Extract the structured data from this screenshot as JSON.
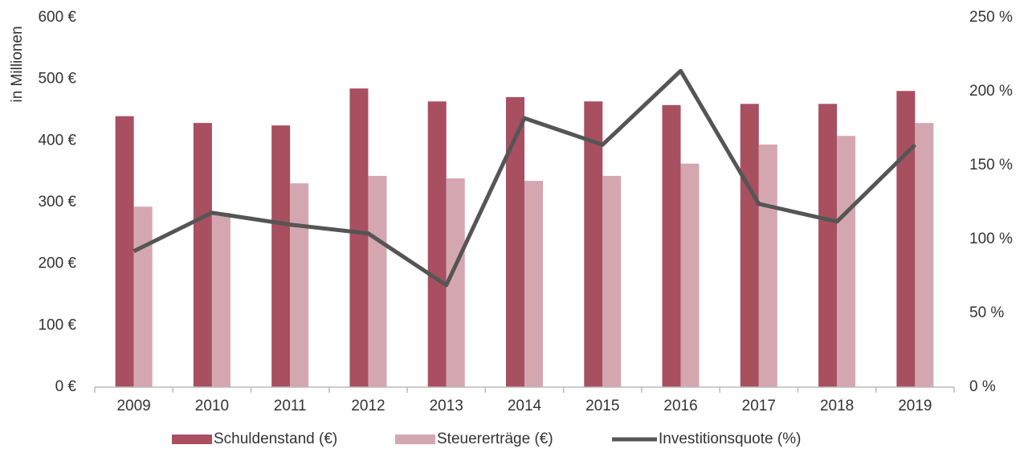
{
  "chart_data": {
    "type": "bar",
    "y_label": "in Millionen",
    "categories": [
      "2009",
      "2010",
      "2011",
      "2012",
      "2013",
      "2014",
      "2015",
      "2016",
      "2017",
      "2018",
      "2019"
    ],
    "series": [
      {
        "name": "Schuldenstand (€)",
        "color": "#a84f60",
        "type": "bar",
        "values": [
          440,
          429,
          425,
          485,
          464,
          471,
          464,
          458,
          460,
          460,
          481
        ]
      },
      {
        "name": "Steuererträge (€)",
        "color": "#d4a7b0",
        "type": "bar",
        "values": [
          293,
          283,
          331,
          343,
          339,
          335,
          343,
          363,
          394,
          408,
          429
        ]
      },
      {
        "name": "Investitionsquote (%)",
        "color": "#555555",
        "type": "line",
        "axis": "y2",
        "values": [
          92,
          118,
          110,
          104,
          69,
          182,
          164,
          214,
          124,
          112,
          164
        ]
      }
    ],
    "ylim": [
      0,
      600
    ],
    "yticks": [
      {
        "value": 0,
        "label": "0 €"
      },
      {
        "value": 100,
        "label": "100 €"
      },
      {
        "value": 200,
        "label": "200 €"
      },
      {
        "value": 300,
        "label": "300 €"
      },
      {
        "value": 400,
        "label": "400 €"
      },
      {
        "value": 500,
        "label": "500 €"
      },
      {
        "value": 600,
        "label": "600 €"
      }
    ],
    "y2lim": [
      0,
      250
    ],
    "y2ticks": [
      {
        "value": 0,
        "label": "0 %"
      },
      {
        "value": 50,
        "label": "50 %"
      },
      {
        "value": 100,
        "label": "100 %"
      },
      {
        "value": 150,
        "label": "150 %"
      },
      {
        "value": 200,
        "label": "200 %"
      },
      {
        "value": 250,
        "label": "250 %"
      }
    ],
    "legend": "bottom"
  }
}
